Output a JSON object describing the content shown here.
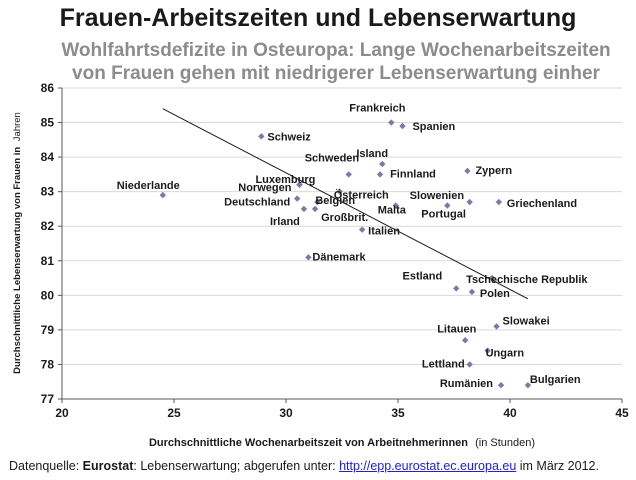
{
  "title": "Frauen-Arbeitszeiten und Lebenserwartung",
  "subtitle_line1": "Wohlfahrtsdefizite in Osteuropa: Lange Wochenarbeitszeiten",
  "subtitle_line2": "von Frauen gehen mit niedrigerer Lebenserwartung einher",
  "source": {
    "prefix": "Datenquelle: ",
    "bold": "Eurostat",
    "middle": ": Lebenserwartung; abgerufen unter: ",
    "link": "http://epp.eurostat.ec.europa.eu",
    "suffix": " im  März 2012."
  },
  "colors": {
    "marker": "#8077a8",
    "trendline": "#1a1a1a",
    "gridline": "#d9d9d9",
    "axis": "#595959"
  },
  "chart_data": {
    "type": "scatter",
    "xlabel_bold": "Durchschnittliche Wochenarbeitszeit von Arbeitnehmerinnen",
    "xlabel_suffix": "(in Stunden)",
    "ylabel_bold": "Durchschnittliche Lebenserwartung von Frauen in",
    "ylabel_suffix": "Jahren",
    "xlim": [
      20,
      45
    ],
    "ylim": [
      77,
      86
    ],
    "xticks": [
      "20",
      "25",
      "30",
      "35",
      "40",
      "45"
    ],
    "yticks": [
      "77",
      "78",
      "79",
      "80",
      "81",
      "82",
      "83",
      "84",
      "85",
      "86"
    ],
    "grid": "horizontal",
    "legend": "none",
    "points": [
      {
        "label": "Niederlande",
        "x": 24.5,
        "y": 82.9
      },
      {
        "label": "Schweiz",
        "x": 28.9,
        "y": 84.6
      },
      {
        "label": "Frankreich",
        "x": 34.7,
        "y": 85.0
      },
      {
        "label": "Spanien",
        "x": 35.2,
        "y": 84.9
      },
      {
        "label": "Island",
        "x": 34.3,
        "y": 83.8
      },
      {
        "label": "Schweden",
        "x": 32.8,
        "y": 83.5
      },
      {
        "label": "Finnland",
        "x": 34.2,
        "y": 83.5
      },
      {
        "label": "Zypern",
        "x": 38.1,
        "y": 83.6
      },
      {
        "label": "Luxemburg",
        "x": 30.6,
        "y": 83.2
      },
      {
        "label": "Norwegen",
        "x": 30.6,
        "y": 83.2
      },
      {
        "label": "Österreich",
        "x": 32.4,
        "y": 83.0
      },
      {
        "label": "Deutschland",
        "x": 30.5,
        "y": 82.8
      },
      {
        "label": "Belgien",
        "x": 31.4,
        "y": 82.7
      },
      {
        "label": "Slowenien",
        "x": 38.2,
        "y": 82.7
      },
      {
        "label": "Griechenland",
        "x": 39.5,
        "y": 82.7
      },
      {
        "label": "Malta",
        "x": 34.9,
        "y": 82.6
      },
      {
        "label": "Portugal",
        "x": 37.2,
        "y": 82.6
      },
      {
        "label": "Irland",
        "x": 30.8,
        "y": 82.5
      },
      {
        "label": "Großbrit.",
        "x": 31.3,
        "y": 82.5
      },
      {
        "label": "Italien",
        "x": 33.4,
        "y": 81.9
      },
      {
        "label": "Dänemark",
        "x": 31.0,
        "y": 81.1
      },
      {
        "label": "Tschechische Republik",
        "x": 39.2,
        "y": 80.5
      },
      {
        "label": "Estland",
        "x": 37.6,
        "y": 80.2
      },
      {
        "label": "Polen",
        "x": 38.3,
        "y": 80.1
      },
      {
        "label": "Slowakei",
        "x": 39.4,
        "y": 79.1
      },
      {
        "label": "Litauen",
        "x": 38.0,
        "y": 78.7
      },
      {
        "label": "Ungarn",
        "x": 39.0,
        "y": 78.4
      },
      {
        "label": "Lettland",
        "x": 38.2,
        "y": 78.0
      },
      {
        "label": "Rumänien",
        "x": 39.6,
        "y": 77.4
      },
      {
        "label": "Bulgarien",
        "x": 40.8,
        "y": 77.4
      }
    ],
    "trendline": {
      "x_start": 24.5,
      "y_start": 85.4,
      "x_end": 40.8,
      "y_end": 79.9
    }
  }
}
